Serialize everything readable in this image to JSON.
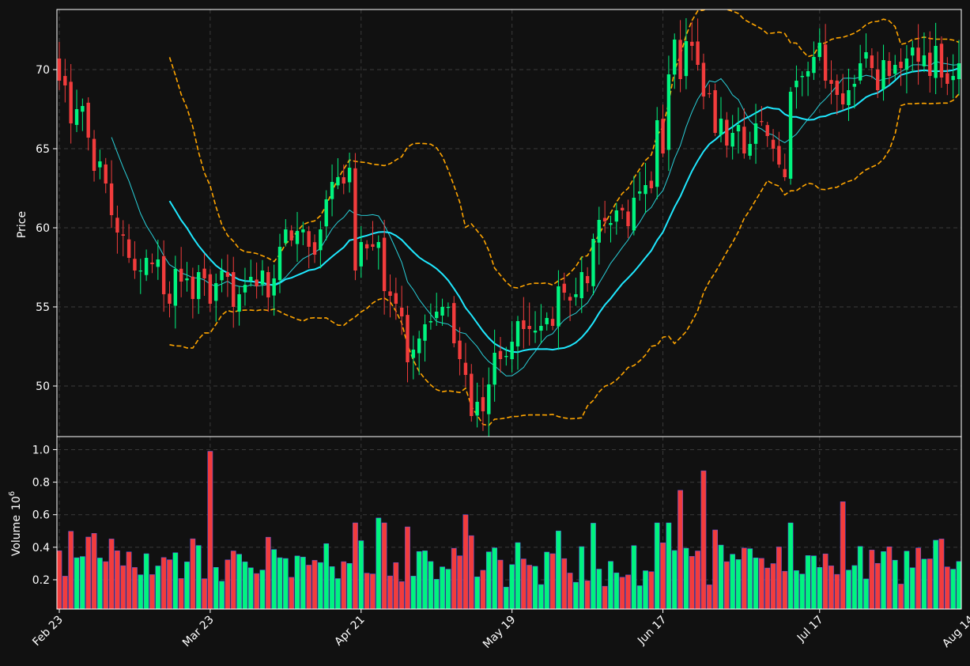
{
  "chart_data": {
    "type": "candlestick",
    "x_tick_labels": [
      "Feb 23",
      "Mar 23",
      "Apr 21",
      "May 19",
      "Jun 17",
      "Jul 17",
      "Aug 14"
    ],
    "x_tick_index": [
      0,
      26,
      52,
      78,
      104,
      131,
      157
    ],
    "price_panel": {
      "ylabel": "Price",
      "ylim": [
        46.8,
        73.8
      ],
      "yticks": [
        50,
        55,
        60,
        65,
        70
      ],
      "grid": true
    },
    "volume_panel": {
      "ylabel": "Volume",
      "ylabel_exponent": "10",
      "ylabel_exponent_sup": "6",
      "ylim": [
        0.02,
        1.08
      ],
      "yticks": [
        0.2,
        0.4,
        0.6,
        0.8,
        1.0
      ],
      "ytick_labels": [
        "0.2",
        "0.4",
        "0.6",
        "0.8",
        "1.0"
      ],
      "grid": true
    },
    "colors": {
      "up": "#00f47f",
      "down": "#f23c3c",
      "ma_fast": "#29cfd8",
      "ma_slow": "#1fe8ff",
      "bands": "#ffa500"
    },
    "closes": [
      69.3,
      69.0,
      66.6,
      67.5,
      67.7,
      65.7,
      63.6,
      64.2,
      62.8,
      60.8,
      59.7,
      59.5,
      58.1,
      57.3,
      57.3,
      58.1,
      57.7,
      58.0,
      55.8,
      55.2,
      57.4,
      56.6,
      56.8,
      55.5,
      57.2,
      56.8,
      55.2,
      56.5,
      57.3,
      56.9,
      55.0,
      55.8,
      56.4,
      56.9,
      56.3,
      57.3,
      55.6,
      56.8,
      58.8,
      59.9,
      59.2,
      59.8,
      59.9,
      58.8,
      58.3,
      59.9,
      61.8,
      62.9,
      63.2,
      62.8,
      63.8,
      57.3,
      59.1,
      58.7,
      58.8,
      59.1,
      56.0,
      55.7,
      55.2,
      54.4,
      51.5,
      52.3,
      53.0,
      53.9,
      54.1,
      54.7,
      55.0,
      55.0,
      52.7,
      51.7,
      50.7,
      48.1,
      49.0,
      48.4,
      50.1,
      52.1,
      51.7,
      51.9,
      52.8,
      54.1,
      53.6,
      53.6,
      53.5,
      53.8,
      54.3,
      53.8,
      56.3,
      55.9,
      55.4,
      55.8,
      57.2,
      56.5,
      59.3,
      60.5,
      60.4,
      60.3,
      61.1,
      61.1,
      60.1,
      61.9,
      62.3,
      62.7,
      62.5,
      66.8,
      64.7,
      69.7,
      71.9,
      69.4,
      71.8,
      71.5,
      70.3,
      68.3,
      68.5,
      66.0,
      66.9,
      65.2,
      66.0,
      66.5,
      64.7,
      65.3,
      66.6,
      66.7,
      65.8,
      65.0,
      64.0,
      63.2,
      68.6,
      69.3,
      69.6,
      69.9,
      70.8,
      71.7,
      69.3,
      69.1,
      68.4,
      67.8,
      68.7,
      69.1,
      70.4,
      71.1,
      70.1,
      68.7,
      70.6,
      69.6,
      70.3,
      70.1,
      70.7,
      71.4,
      70.5,
      70.9,
      69.6,
      71.5,
      69.5,
      69.1,
      69.6,
      70.4
    ]
  }
}
